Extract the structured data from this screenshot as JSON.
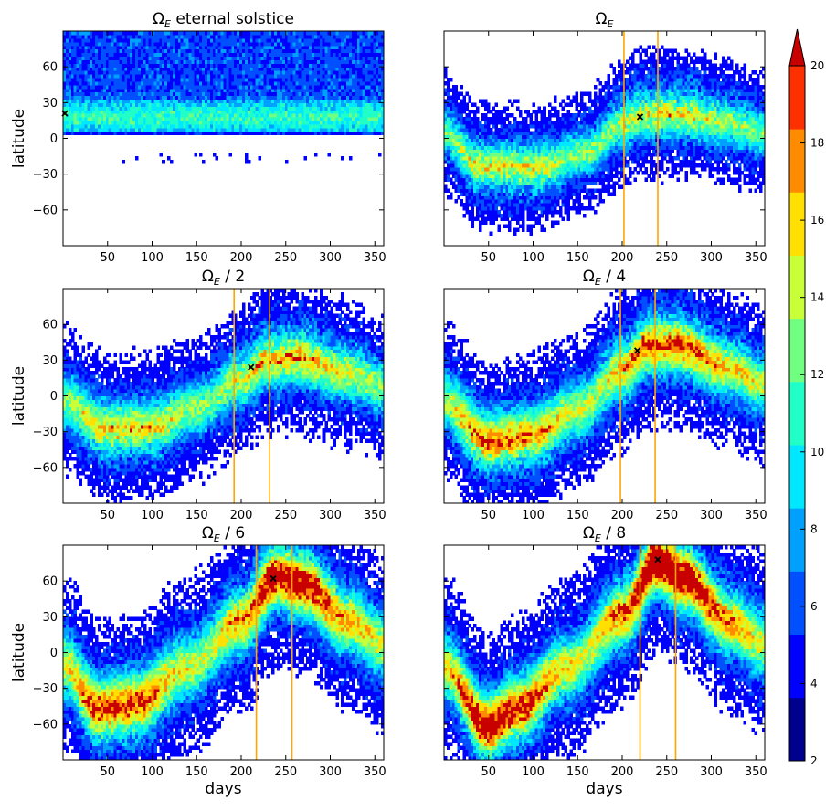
{
  "chart_data": {
    "type": "heatmap",
    "x_label": "days",
    "y_label": "latitude",
    "x_range": [
      0,
      360
    ],
    "y_range": [
      -90,
      90
    ],
    "x_ticks": [
      50,
      100,
      150,
      200,
      250,
      300,
      350
    ],
    "y_ticks": [
      60,
      30,
      0,
      -30,
      -60
    ],
    "colorbar": {
      "levels": [
        2,
        4,
        6,
        8,
        10,
        12,
        14,
        16,
        18,
        20
      ],
      "extend": "max",
      "colors": [
        "#00008f",
        "#0000ff",
        "#0050ff",
        "#00a0ff",
        "#00e8ff",
        "#20ffc8",
        "#70ff80",
        "#c8ff38",
        "#ffe000",
        "#ff8c00",
        "#ff3000",
        "#c80000"
      ]
    },
    "panels": [
      {
        "title": "Ω_E eternal solstice",
        "mode": "constant",
        "band_center": [
          [
            0,
            18
          ],
          [
            360,
            18
          ]
        ],
        "band_width": 9,
        "peak": 11,
        "marker": {
          "x": 2,
          "y": 21
        },
        "vertical_lines": []
      },
      {
        "title": "Ω_E",
        "mode": "seasonal",
        "band_center": [
          [
            0,
            5
          ],
          [
            40,
            -20
          ],
          [
            110,
            -22
          ],
          [
            160,
            -12
          ],
          [
            200,
            10
          ],
          [
            220,
            17
          ],
          [
            260,
            18
          ],
          [
            320,
            12
          ],
          [
            360,
            5
          ]
        ],
        "band_width": 11,
        "peak": 14,
        "marker": {
          "x": 220,
          "y": 18
        },
        "vertical_lines": [
          202,
          240
        ]
      },
      {
        "title": "Ω_E / 2",
        "mode": "seasonal",
        "band_center": [
          [
            0,
            -3
          ],
          [
            50,
            -25
          ],
          [
            100,
            -23
          ],
          [
            150,
            -10
          ],
          [
            200,
            12
          ],
          [
            230,
            27
          ],
          [
            260,
            30
          ],
          [
            320,
            18
          ],
          [
            360,
            8
          ]
        ],
        "band_width": 13,
        "peak": 15,
        "marker": {
          "x": 211,
          "y": 24
        },
        "vertical_lines": [
          192,
          232
        ]
      },
      {
        "title": "Ω_E / 4",
        "mode": "seasonal",
        "band_center": [
          [
            0,
            -5
          ],
          [
            50,
            -35
          ],
          [
            100,
            -30
          ],
          [
            150,
            -12
          ],
          [
            200,
            20
          ],
          [
            230,
            40
          ],
          [
            260,
            40
          ],
          [
            320,
            22
          ],
          [
            360,
            10
          ]
        ],
        "band_width": 14,
        "peak": 17,
        "marker": {
          "x": 217,
          "y": 38
        },
        "vertical_lines": [
          198,
          237
        ]
      },
      {
        "title": "Ω_E / 6",
        "mode": "seasonal",
        "band_center": [
          [
            0,
            -10
          ],
          [
            40,
            -45
          ],
          [
            80,
            -40
          ],
          [
            140,
            -12
          ],
          [
            200,
            25
          ],
          [
            240,
            62
          ],
          [
            270,
            55
          ],
          [
            320,
            25
          ],
          [
            360,
            8
          ]
        ],
        "band_width": 16,
        "peak": 18,
        "marker": {
          "x": 236,
          "y": 62
        },
        "vertical_lines": [
          217,
          257
        ]
      },
      {
        "title": "Ω_E / 8",
        "mode": "seasonal",
        "band_center": [
          [
            0,
            -12
          ],
          [
            50,
            -60
          ],
          [
            80,
            -45
          ],
          [
            140,
            -12
          ],
          [
            200,
            30
          ],
          [
            240,
            75
          ],
          [
            270,
            60
          ],
          [
            320,
            25
          ],
          [
            360,
            8
          ]
        ],
        "band_width": 16,
        "peak": 19,
        "marker": {
          "x": 240,
          "y": 78
        },
        "vertical_lines": [
          220,
          260
        ]
      }
    ]
  }
}
